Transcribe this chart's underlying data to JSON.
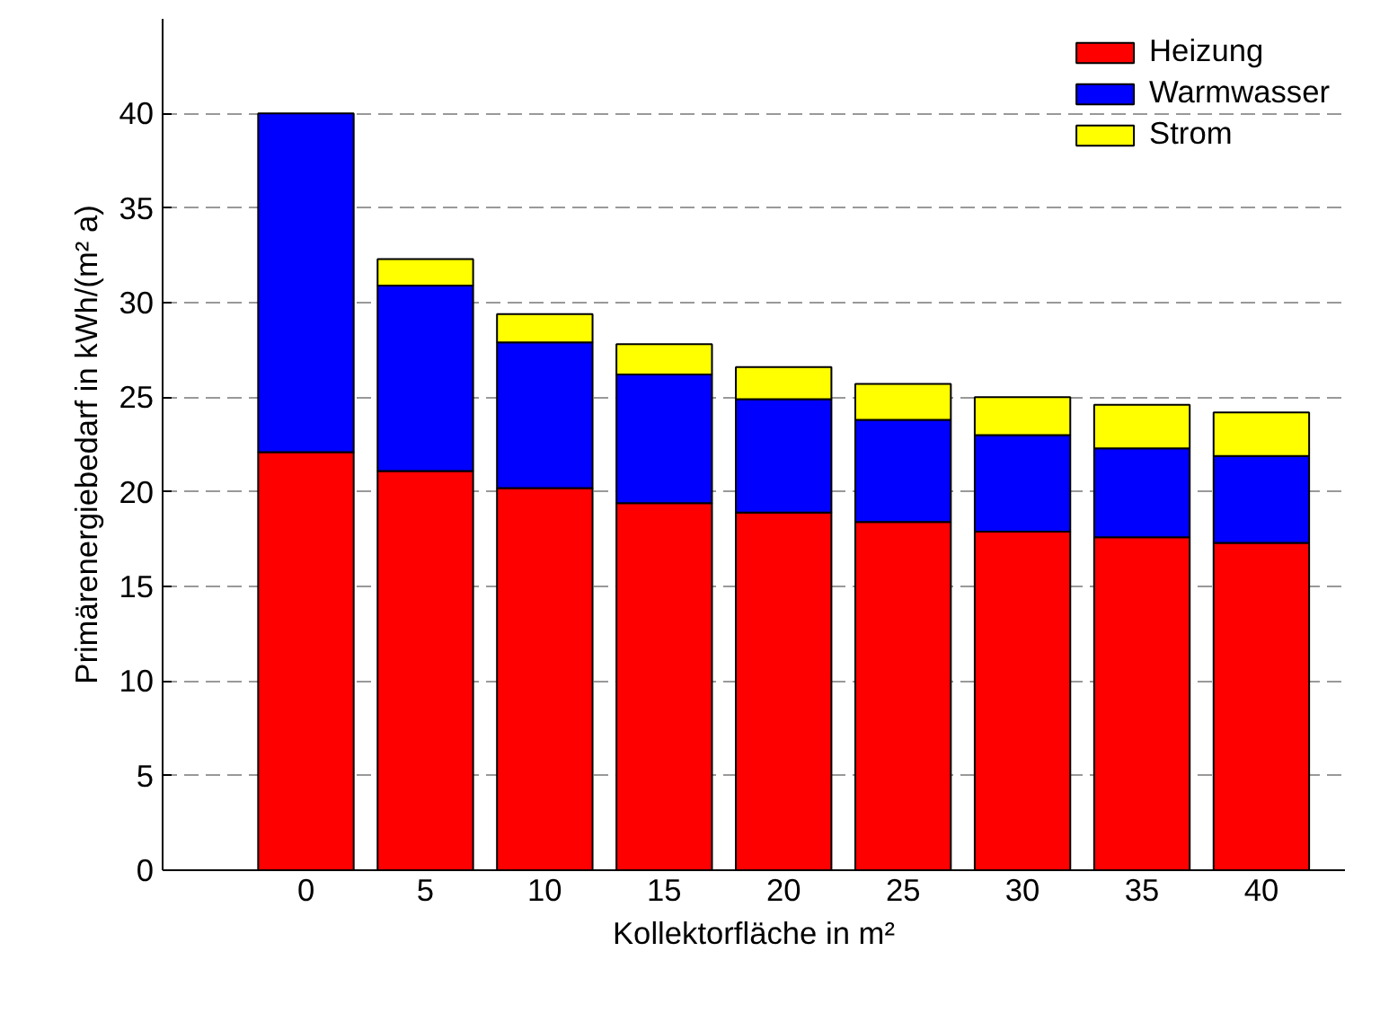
{
  "chart_data": {
    "type": "bar",
    "stacked": true,
    "xlabel": "Kollektorfläche in m²",
    "ylabel": "Primärenergiebedarf in kWh/(m² a)",
    "categories": [
      "0",
      "5",
      "10",
      "15",
      "20",
      "25",
      "30",
      "35",
      "40"
    ],
    "series": [
      {
        "name": "Heizung",
        "color": "#ff0000",
        "values": [
          22.1,
          21.1,
          20.2,
          19.4,
          18.9,
          18.4,
          17.9,
          17.6,
          17.3
        ]
      },
      {
        "name": "Warmwasser",
        "color": "#0000ff",
        "values": [
          17.9,
          9.8,
          7.7,
          6.8,
          6.0,
          5.4,
          5.1,
          4.7,
          4.6
        ]
      },
      {
        "name": "Strom",
        "color": "#ffff00",
        "values": [
          null,
          1.4,
          1.5,
          1.6,
          1.7,
          1.9,
          2.0,
          2.3,
          2.3
        ]
      }
    ],
    "ylim": [
      0,
      45
    ],
    "yticks": [
      0,
      5,
      10,
      15,
      20,
      25,
      30,
      35,
      40
    ],
    "grid": "y",
    "legend": "top right"
  }
}
